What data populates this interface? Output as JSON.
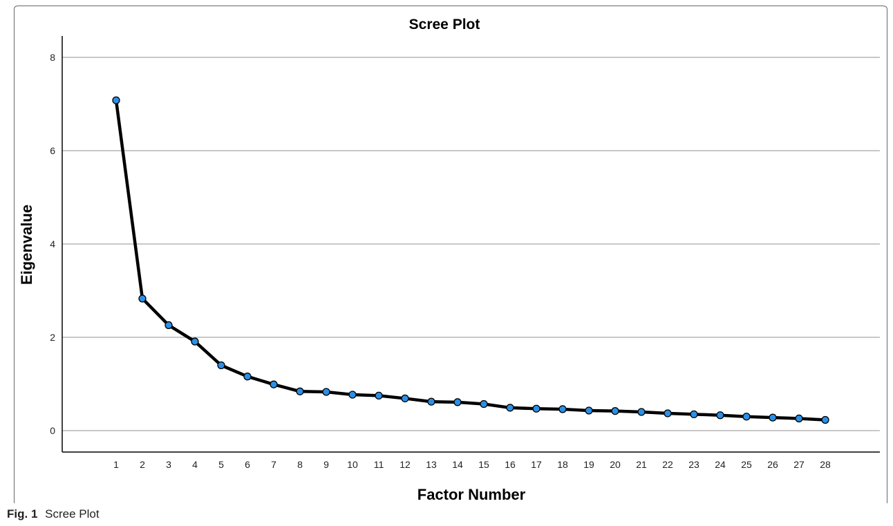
{
  "caption": {
    "number": "Fig. 1",
    "text": "Scree Plot"
  },
  "colors": {
    "line": "#000000",
    "marker": "#2c8fe6",
    "grid": "#a6a6a6",
    "frame": "#555555"
  },
  "chart_data": {
    "type": "line",
    "title": "Scree Plot",
    "xlabel": "Factor Number",
    "ylabel": "Eigenvalue",
    "ylim": [
      0,
      8
    ],
    "yticks": [
      0,
      2,
      4,
      6,
      8
    ],
    "grid": true,
    "x": [
      1,
      2,
      3,
      4,
      5,
      6,
      7,
      8,
      9,
      10,
      11,
      12,
      13,
      14,
      15,
      16,
      17,
      18,
      19,
      20,
      21,
      22,
      23,
      24,
      25,
      26,
      27,
      28
    ],
    "series": [
      {
        "values": [
          7.08,
          2.83,
          2.26,
          1.91,
          1.4,
          1.16,
          0.99,
          0.84,
          0.83,
          0.77,
          0.75,
          0.69,
          0.62,
          0.61,
          0.57,
          0.49,
          0.47,
          0.46,
          0.43,
          0.42,
          0.4,
          0.37,
          0.35,
          0.33,
          0.3,
          0.28,
          0.26,
          0.23
        ]
      }
    ]
  }
}
